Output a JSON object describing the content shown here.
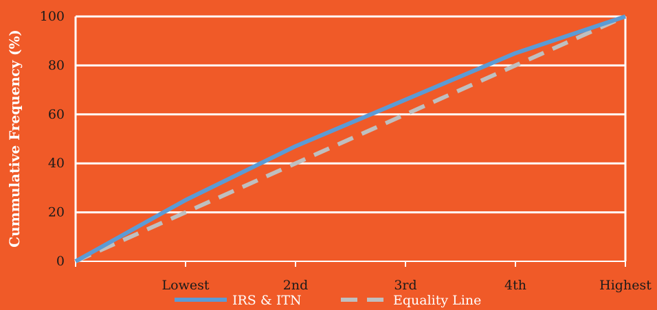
{
  "chart_data": {
    "type": "line",
    "title": "",
    "xlabel": "",
    "ylabel": "Cummulative Frequency (%)",
    "categories": [
      "",
      "Lowest",
      "2nd",
      "3rd",
      "4th",
      "Highest"
    ],
    "ylim": [
      0,
      100
    ],
    "yticks": [
      "0",
      "20",
      "40",
      "60",
      "80",
      "100"
    ],
    "grid": true,
    "legend_position": "bottom",
    "series": [
      {
        "name": "IRS & ITN",
        "values": [
          0,
          25,
          47,
          66,
          85,
          100
        ],
        "color": "#5B9BD5",
        "style": "solid"
      },
      {
        "name": "Equality Line",
        "values": [
          0,
          20,
          40,
          60,
          80,
          100
        ],
        "color": "#BFBFBF",
        "style": "dashed"
      }
    ]
  },
  "colors": {
    "background": "#F05A28",
    "gridline": "#FFFFFF",
    "text": "#1A1A1A"
  }
}
